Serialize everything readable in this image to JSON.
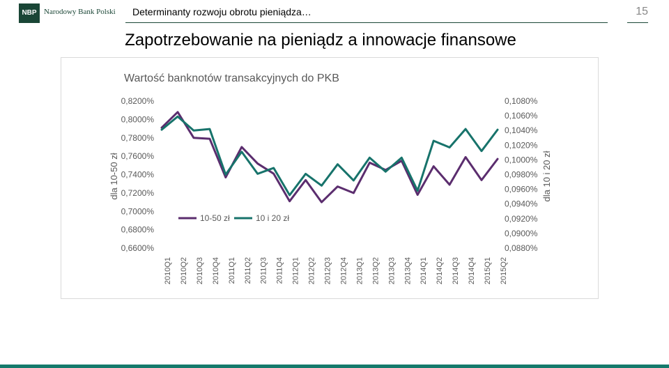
{
  "header": {
    "logo_mark": "NBP",
    "logo_text": "Narodowy Bank Polski",
    "title": "Determinanty rozwoju obrotu pieniądza…",
    "page_number": "15"
  },
  "slide": {
    "title": "Zapotrzebowanie na pieniądz a innowacje finansowe"
  },
  "colors": {
    "brand": "#1a4636",
    "footer": "#147a6c",
    "series_10_50": "#5b2d6e",
    "series_10_20": "#17736b"
  },
  "chart_data": {
    "type": "line",
    "title": "Wartość banknotów transakcyjnych do PKB",
    "ylabel": "dla 10-50 zł",
    "y2label": "dla 10 i 20 zł",
    "ylim": [
      0.66,
      0.82
    ],
    "y2lim": [
      0.088,
      0.108
    ],
    "y_ticks": [
      "0,8200%",
      "0,8000%",
      "0,7800%",
      "0,7600%",
      "0,7400%",
      "0,7200%",
      "0,7000%",
      "0,6800%",
      "0,6600%"
    ],
    "y2_ticks": [
      "0,1080%",
      "0,1060%",
      "0,1040%",
      "0,1020%",
      "0,1000%",
      "0,0980%",
      "0,0960%",
      "0,0940%",
      "0,0920%",
      "0,0900%",
      "0,0880%"
    ],
    "categories": [
      "2010Q1",
      "2010Q2",
      "2010Q3",
      "2010Q4",
      "2011Q1",
      "2011Q2",
      "2011Q3",
      "2011Q4",
      "2012Q1",
      "2012Q2",
      "2012Q3",
      "2012Q4",
      "2013Q1",
      "2013Q2",
      "2013Q3",
      "2013Q4",
      "2014Q1",
      "2014Q2",
      "2014Q3",
      "2014Q4",
      "2015Q1",
      "2015Q2"
    ],
    "legend_position": "inside-lower-left",
    "grid": false,
    "series": [
      {
        "name": "10-50 zł",
        "axis": "left",
        "color": "#5b2d6e",
        "values": [
          0.791,
          0.808,
          0.78,
          0.779,
          0.737,
          0.77,
          0.752,
          0.741,
          0.711,
          0.734,
          0.71,
          0.727,
          0.72,
          0.753,
          0.745,
          0.755,
          0.718,
          0.749,
          0.729,
          0.759,
          0.734,
          0.757
        ]
      },
      {
        "name": "10 i 20 zł",
        "axis": "right",
        "color": "#17736b",
        "values": [
          0.1041,
          0.1059,
          0.104,
          0.1042,
          0.098,
          0.1011,
          0.0981,
          0.0989,
          0.0952,
          0.0981,
          0.0965,
          0.0994,
          0.0972,
          0.1003,
          0.0984,
          0.1003,
          0.0958,
          0.1026,
          0.1017,
          0.1042,
          0.1012,
          0.1041
        ]
      }
    ]
  }
}
